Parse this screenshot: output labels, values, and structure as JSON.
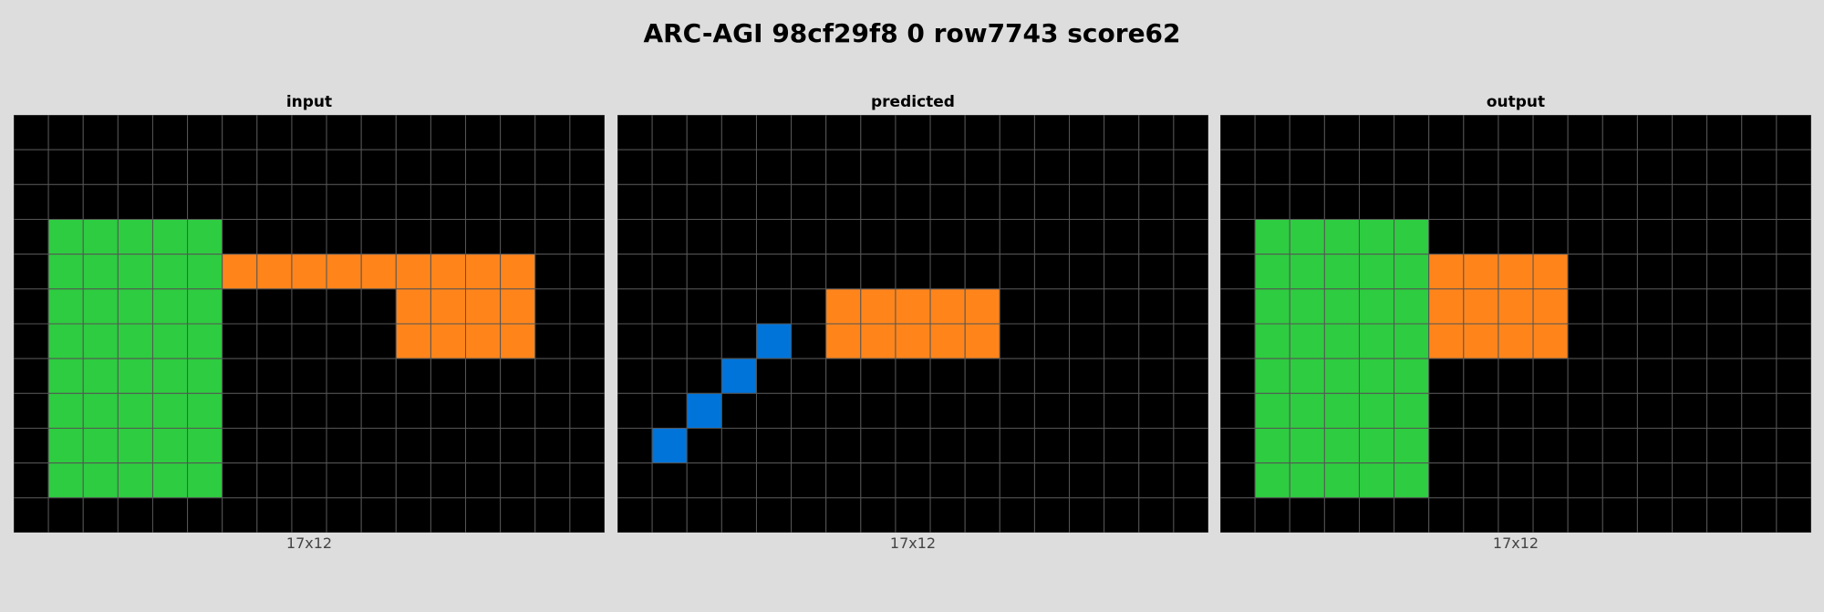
{
  "title": "ARC-AGI 98cf29f8 0 row7743 score62",
  "palette": {
    "0": "#000000",
    "1": "#0074d9",
    "2": "#ff4136",
    "3": "#2ecc40",
    "4": "#ffdc00",
    "5": "#aaaaaa",
    "6": "#f012be",
    "7": "#ff851b",
    "8": "#7fdbff",
    "9": "#870c25"
  },
  "grid_line_color": "#555555",
  "panels": [
    {
      "label": "input",
      "dims": "17x12",
      "grid": [
        [
          0,
          0,
          0,
          0,
          0,
          0,
          0,
          0,
          0,
          0,
          0,
          0,
          0,
          0,
          0,
          0,
          0
        ],
        [
          0,
          0,
          0,
          0,
          0,
          0,
          0,
          0,
          0,
          0,
          0,
          0,
          0,
          0,
          0,
          0,
          0
        ],
        [
          0,
          0,
          0,
          0,
          0,
          0,
          0,
          0,
          0,
          0,
          0,
          0,
          0,
          0,
          0,
          0,
          0
        ],
        [
          0,
          3,
          3,
          3,
          3,
          3,
          0,
          0,
          0,
          0,
          0,
          0,
          0,
          0,
          0,
          0,
          0
        ],
        [
          0,
          3,
          3,
          3,
          3,
          3,
          7,
          7,
          7,
          7,
          7,
          7,
          7,
          7,
          7,
          0,
          0
        ],
        [
          0,
          3,
          3,
          3,
          3,
          3,
          0,
          0,
          0,
          0,
          0,
          7,
          7,
          7,
          7,
          0,
          0
        ],
        [
          0,
          3,
          3,
          3,
          3,
          3,
          0,
          0,
          0,
          0,
          0,
          7,
          7,
          7,
          7,
          0,
          0
        ],
        [
          0,
          3,
          3,
          3,
          3,
          3,
          0,
          0,
          0,
          0,
          0,
          0,
          0,
          0,
          0,
          0,
          0
        ],
        [
          0,
          3,
          3,
          3,
          3,
          3,
          0,
          0,
          0,
          0,
          0,
          0,
          0,
          0,
          0,
          0,
          0
        ],
        [
          0,
          3,
          3,
          3,
          3,
          3,
          0,
          0,
          0,
          0,
          0,
          0,
          0,
          0,
          0,
          0,
          0
        ],
        [
          0,
          3,
          3,
          3,
          3,
          3,
          0,
          0,
          0,
          0,
          0,
          0,
          0,
          0,
          0,
          0,
          0
        ],
        [
          0,
          0,
          0,
          0,
          0,
          0,
          0,
          0,
          0,
          0,
          0,
          0,
          0,
          0,
          0,
          0,
          0
        ]
      ]
    },
    {
      "label": "predicted",
      "dims": "17x12",
      "grid": [
        [
          0,
          0,
          0,
          0,
          0,
          0,
          0,
          0,
          0,
          0,
          0,
          0,
          0,
          0,
          0,
          0,
          0
        ],
        [
          0,
          0,
          0,
          0,
          0,
          0,
          0,
          0,
          0,
          0,
          0,
          0,
          0,
          0,
          0,
          0,
          0
        ],
        [
          0,
          0,
          0,
          0,
          0,
          0,
          0,
          0,
          0,
          0,
          0,
          0,
          0,
          0,
          0,
          0,
          0
        ],
        [
          0,
          0,
          0,
          0,
          0,
          0,
          0,
          0,
          0,
          0,
          0,
          0,
          0,
          0,
          0,
          0,
          0
        ],
        [
          0,
          0,
          0,
          0,
          0,
          0,
          0,
          0,
          0,
          0,
          0,
          0,
          0,
          0,
          0,
          0,
          0
        ],
        [
          0,
          0,
          0,
          0,
          0,
          0,
          7,
          7,
          7,
          7,
          7,
          0,
          0,
          0,
          0,
          0,
          0
        ],
        [
          0,
          0,
          0,
          0,
          1,
          0,
          7,
          7,
          7,
          7,
          7,
          0,
          0,
          0,
          0,
          0,
          0
        ],
        [
          0,
          0,
          0,
          1,
          0,
          0,
          0,
          0,
          0,
          0,
          0,
          0,
          0,
          0,
          0,
          0,
          0
        ],
        [
          0,
          0,
          1,
          0,
          0,
          0,
          0,
          0,
          0,
          0,
          0,
          0,
          0,
          0,
          0,
          0,
          0
        ],
        [
          0,
          1,
          0,
          0,
          0,
          0,
          0,
          0,
          0,
          0,
          0,
          0,
          0,
          0,
          0,
          0,
          0
        ],
        [
          0,
          0,
          0,
          0,
          0,
          0,
          0,
          0,
          0,
          0,
          0,
          0,
          0,
          0,
          0,
          0,
          0
        ],
        [
          0,
          0,
          0,
          0,
          0,
          0,
          0,
          0,
          0,
          0,
          0,
          0,
          0,
          0,
          0,
          0,
          0
        ]
      ]
    },
    {
      "label": "output",
      "dims": "17x12",
      "grid": [
        [
          0,
          0,
          0,
          0,
          0,
          0,
          0,
          0,
          0,
          0,
          0,
          0,
          0,
          0,
          0,
          0,
          0
        ],
        [
          0,
          0,
          0,
          0,
          0,
          0,
          0,
          0,
          0,
          0,
          0,
          0,
          0,
          0,
          0,
          0,
          0
        ],
        [
          0,
          0,
          0,
          0,
          0,
          0,
          0,
          0,
          0,
          0,
          0,
          0,
          0,
          0,
          0,
          0,
          0
        ],
        [
          0,
          3,
          3,
          3,
          3,
          3,
          0,
          0,
          0,
          0,
          0,
          0,
          0,
          0,
          0,
          0,
          0
        ],
        [
          0,
          3,
          3,
          3,
          3,
          3,
          7,
          7,
          7,
          7,
          0,
          0,
          0,
          0,
          0,
          0,
          0
        ],
        [
          0,
          3,
          3,
          3,
          3,
          3,
          7,
          7,
          7,
          7,
          0,
          0,
          0,
          0,
          0,
          0,
          0
        ],
        [
          0,
          3,
          3,
          3,
          3,
          3,
          7,
          7,
          7,
          7,
          0,
          0,
          0,
          0,
          0,
          0,
          0
        ],
        [
          0,
          3,
          3,
          3,
          3,
          3,
          0,
          0,
          0,
          0,
          0,
          0,
          0,
          0,
          0,
          0,
          0
        ],
        [
          0,
          3,
          3,
          3,
          3,
          3,
          0,
          0,
          0,
          0,
          0,
          0,
          0,
          0,
          0,
          0,
          0
        ],
        [
          0,
          3,
          3,
          3,
          3,
          3,
          0,
          0,
          0,
          0,
          0,
          0,
          0,
          0,
          0,
          0,
          0
        ],
        [
          0,
          3,
          3,
          3,
          3,
          3,
          0,
          0,
          0,
          0,
          0,
          0,
          0,
          0,
          0,
          0,
          0
        ],
        [
          0,
          0,
          0,
          0,
          0,
          0,
          0,
          0,
          0,
          0,
          0,
          0,
          0,
          0,
          0,
          0,
          0
        ]
      ]
    }
  ]
}
